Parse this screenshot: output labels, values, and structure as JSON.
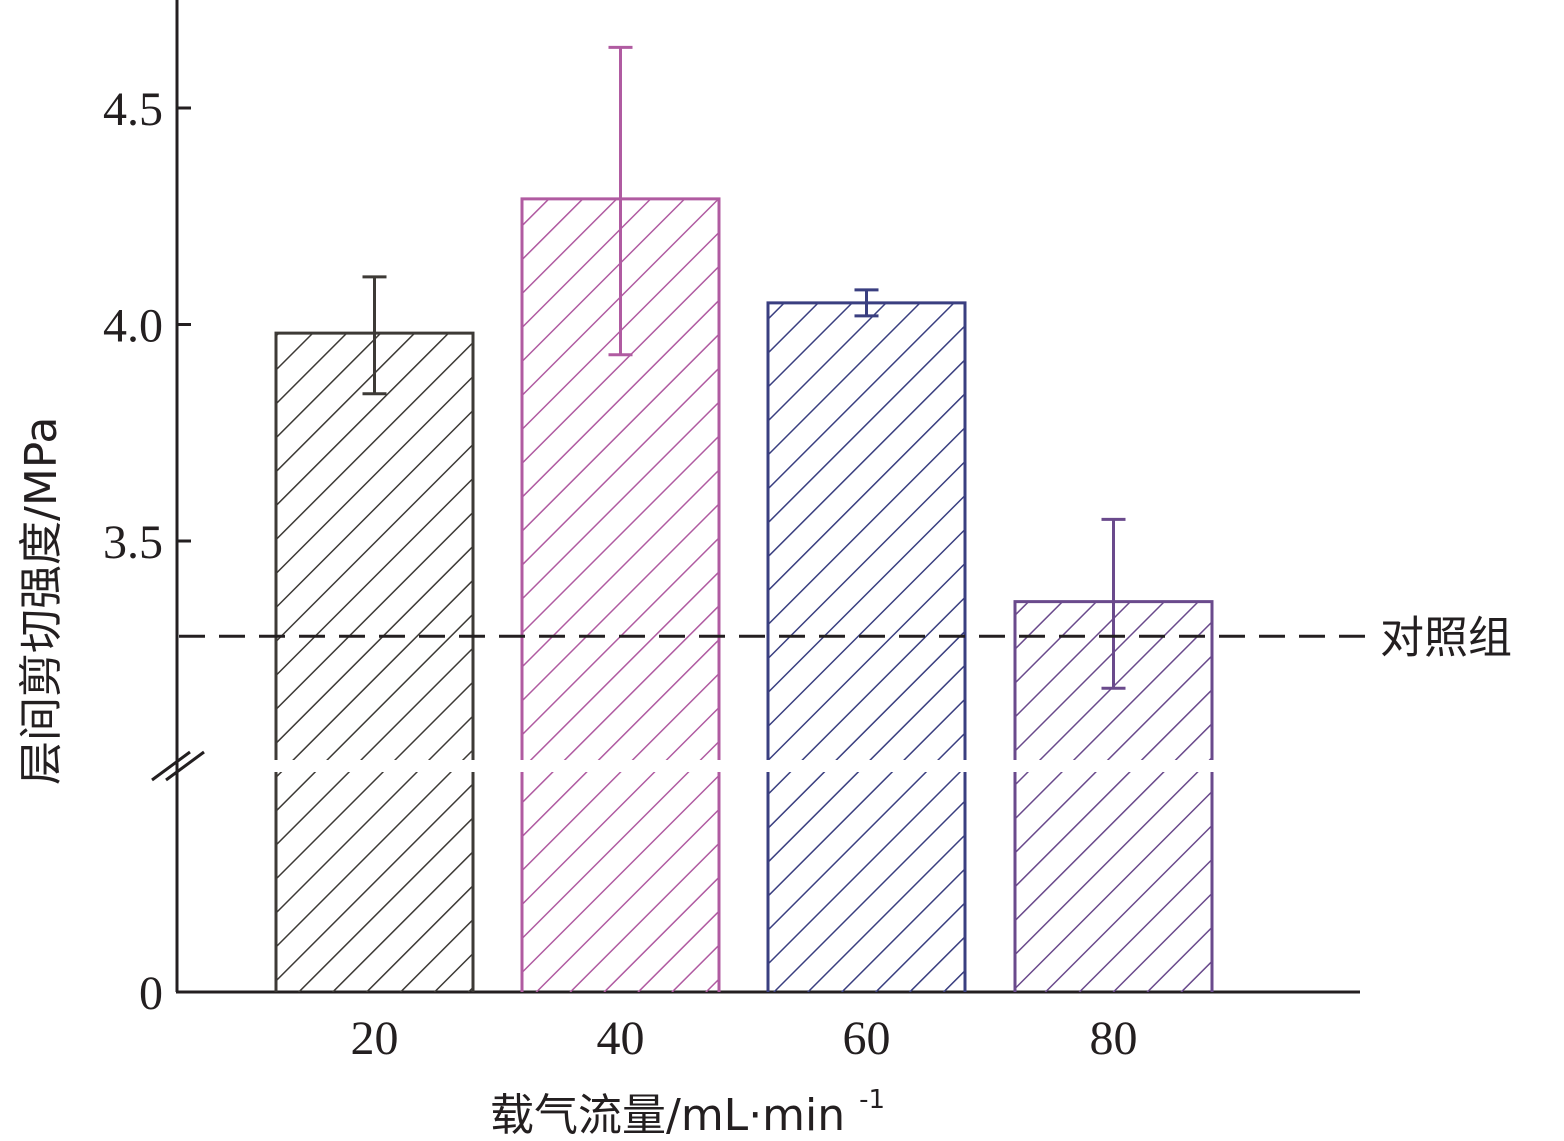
{
  "chart_data": {
    "type": "bar",
    "title": "",
    "xlabel": "载气流量/mL·min",
    "xlabel_superscript": "-1",
    "ylabel": "层间剪切强度/MPa",
    "categories": [
      "20",
      "40",
      "60",
      "80"
    ],
    "values": [
      3.98,
      4.29,
      4.05,
      3.36
    ],
    "error_low": [
      3.84,
      3.93,
      4.02,
      3.16
    ],
    "error_high": [
      4.11,
      4.64,
      4.08,
      3.55
    ],
    "colors": [
      "#3d3a36",
      "#b05ba1",
      "#3a3f80",
      "#6a4a8c"
    ],
    "hatch": "diagonal",
    "y_break": true,
    "ylim": [
      0,
      4.75
    ],
    "y_ticks": [
      "0",
      "3.5",
      "4.0",
      "4.5"
    ],
    "reference_line": {
      "label": "对照组",
      "value": 3.28,
      "style": "dashed"
    },
    "grid": false,
    "legend": "none"
  }
}
